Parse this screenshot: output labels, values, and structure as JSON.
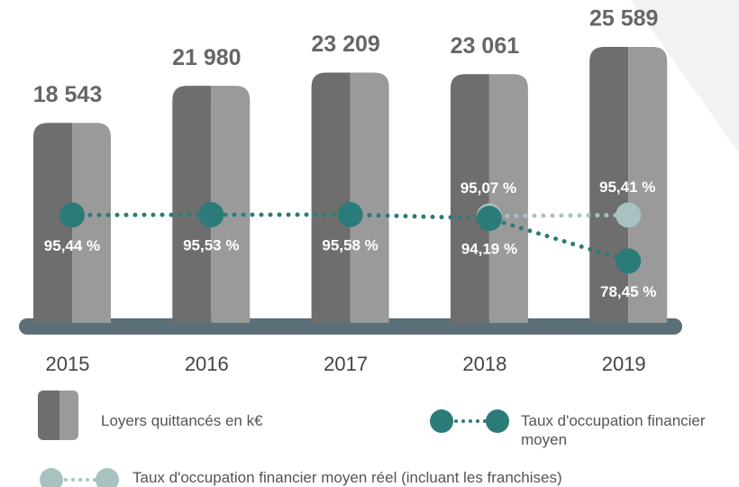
{
  "chart_data": {
    "type": "bar_line",
    "categories": [
      "2015",
      "2016",
      "2017",
      "2018",
      "2019"
    ],
    "bars": {
      "name": "Loyers quittancés en k€",
      "colors": [
        "#6e6e6e",
        "#9a9a9a"
      ],
      "values": [
        18543,
        21980,
        23209,
        23061,
        25589
      ],
      "value_labels": [
        "18 543",
        "21 980",
        "23 209",
        "23 061",
        "25 589"
      ]
    },
    "series": [
      {
        "name": "Taux d'occupation financier moyen",
        "color": "#2b7b79",
        "values": [
          95.44,
          95.53,
          95.58,
          94.19,
          78.45
        ],
        "value_labels": [
          "95,44 %",
          "95,53 %",
          "95,58 %",
          "94,19 %",
          "78,45 %"
        ]
      },
      {
        "name": "Taux d'occupation financier moyen réel (incluant les franchises)",
        "color": "#a8c2c2",
        "values": [
          null,
          null,
          null,
          95.07,
          95.41
        ],
        "value_labels": [
          null,
          null,
          null,
          "95,07 %",
          "95,41 %"
        ]
      }
    ]
  }
}
